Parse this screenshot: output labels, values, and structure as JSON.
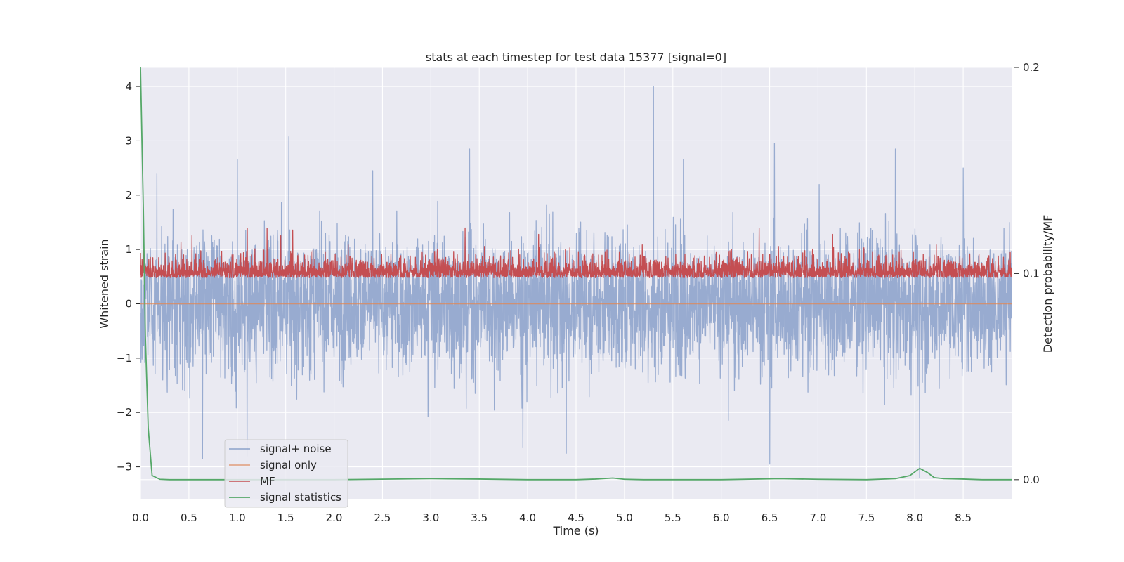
{
  "chart_data": {
    "type": "line",
    "title": "stats at each timestep for test data 15377 [signal=0]",
    "xlabel": "Time (s)",
    "ylabel": "Whitened strain",
    "y2label": "Detection probability/MF",
    "xlim": [
      0.0,
      9.0
    ],
    "ylim": [
      -3.6,
      4.35
    ],
    "y2lim": [
      -0.0096,
      0.2
    ],
    "xticks": [
      "0.0",
      "0.5",
      "1.0",
      "1.5",
      "2.0",
      "2.5",
      "3.0",
      "3.5",
      "4.0",
      "4.5",
      "5.0",
      "5.5",
      "6.0",
      "6.5",
      "7.0",
      "7.5",
      "8.0",
      "8.5"
    ],
    "yticks": [
      "−3",
      "−2",
      "−1",
      "0",
      "1",
      "2",
      "3",
      "4"
    ],
    "y2ticks": [
      "0.0",
      "0.1",
      "0.2"
    ],
    "grid": true,
    "legend_position": "lower-left",
    "series": [
      {
        "name": "signal+ noise",
        "color": "#4c72b0",
        "axis": "left",
        "sampling_rate_hz": 2048,
        "amplitude_range": [
          -3.2,
          4.0
        ],
        "peaks": [
          {
            "x": 0.17,
            "y": 2.4
          },
          {
            "x": 1.0,
            "y": 2.65
          },
          {
            "x": 2.4,
            "y": 2.45
          },
          {
            "x": 3.4,
            "y": 2.85
          },
          {
            "x": 5.3,
            "y": 4.0
          },
          {
            "x": 6.55,
            "y": 2.95
          },
          {
            "x": 7.8,
            "y": 2.85
          },
          {
            "x": 8.5,
            "y": 2.5
          }
        ],
        "troughs": [
          {
            "x": 0.64,
            "y": -2.85
          },
          {
            "x": 1.1,
            "y": -2.8
          },
          {
            "x": 3.95,
            "y": -2.65
          },
          {
            "x": 4.4,
            "y": -2.75
          },
          {
            "x": 6.5,
            "y": -2.95
          },
          {
            "x": 8.05,
            "y": -3.2
          }
        ]
      },
      {
        "name": "signal only",
        "color": "#dd8452",
        "axis": "left",
        "value": 0.0
      },
      {
        "name": "MF",
        "color": "#c44e52",
        "axis": "right",
        "baseline": 0.1,
        "band_range": [
          0.095,
          0.123
        ]
      },
      {
        "name": "signal statistics",
        "color": "#55a868",
        "axis": "right",
        "x": [
          0.0,
          0.03,
          0.05,
          0.08,
          0.12,
          0.2,
          0.3,
          1.0,
          2.0,
          3.0,
          3.5,
          4.0,
          4.5,
          4.7,
          4.88,
          5.0,
          5.2,
          6.0,
          6.6,
          7.0,
          7.5,
          7.8,
          7.95,
          8.05,
          8.13,
          8.2,
          8.3,
          8.5,
          8.7,
          9.0
        ],
        "y": [
          0.2,
          0.13,
          0.07,
          0.025,
          0.002,
          0.0002,
          0.0,
          0.0,
          0.0,
          0.0005,
          0.0003,
          0.0,
          0.0,
          0.0003,
          0.0008,
          0.0002,
          0.0,
          0.0,
          0.0005,
          0.0002,
          0.0,
          0.0005,
          0.002,
          0.0055,
          0.0035,
          0.001,
          0.0005,
          0.0003,
          0.0,
          0.0
        ]
      }
    ]
  }
}
